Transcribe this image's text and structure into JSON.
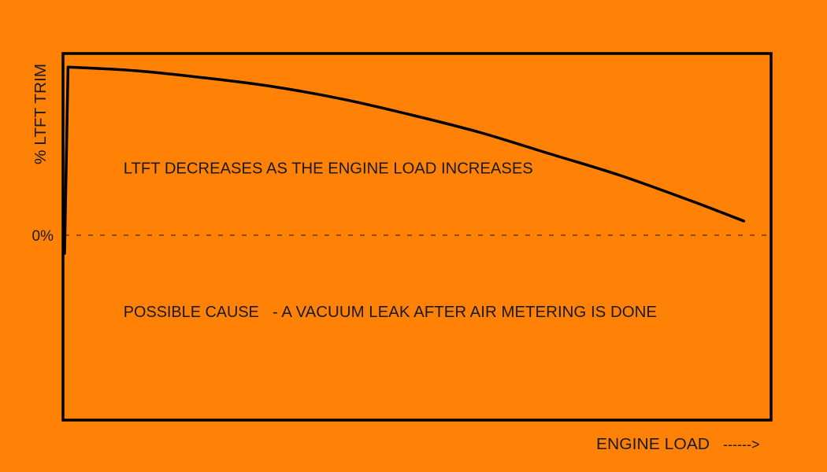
{
  "chart_data": {
    "type": "line",
    "title": "",
    "xlabel": "ENGINE LOAD",
    "xlabel_arrow": "------>",
    "ylabel": "% LTFT TRIM",
    "y_ticks": [
      {
        "value": 0,
        "label": "0%"
      }
    ],
    "xlim": [
      0,
      100
    ],
    "ylim": [
      -1,
      1
    ],
    "grid": false,
    "reference_line": {
      "y": 0,
      "style": "dashed"
    },
    "annotations": [
      {
        "text": "LTFT DECREASES AS THE ENGINE LOAD INCREASES",
        "x": 8.5,
        "y": 0.35
      },
      {
        "text": "POSSIBLE CAUSE",
        "x": 8.5,
        "y": -0.45
      },
      {
        "text": "- A VACUUM LEAK AFTER AIR METERING IS DONE",
        "x": 30.0,
        "y": -0.45
      }
    ],
    "series": [
      {
        "x": [
          0,
          0.5,
          10,
          20,
          30,
          40,
          50,
          60,
          70,
          80,
          90,
          98
        ],
        "y": [
          -0.1,
          0.95,
          0.93,
          0.89,
          0.84,
          0.77,
          0.68,
          0.58,
          0.46,
          0.34,
          0.2,
          0.08
        ],
        "color": "#000000"
      }
    ]
  }
}
